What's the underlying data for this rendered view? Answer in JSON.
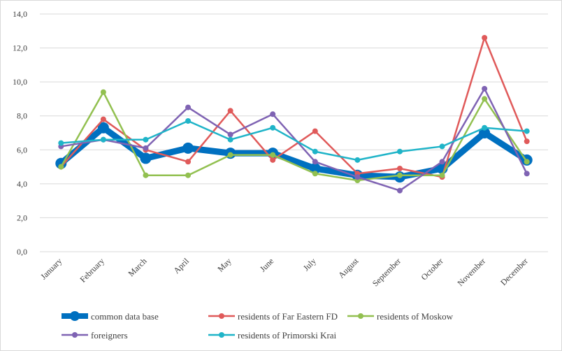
{
  "chart_data": {
    "type": "line",
    "title": "",
    "xlabel": "",
    "ylabel": "",
    "ylim": [
      0,
      14
    ],
    "y_ticks": [
      "0,0",
      "2,0",
      "4,0",
      "6,0",
      "8,0",
      "10,0",
      "12,0",
      "14,0"
    ],
    "y_tick_values": [
      0,
      2,
      4,
      6,
      8,
      10,
      12,
      14
    ],
    "grid": true,
    "legend_position": "bottom",
    "categories": [
      "January",
      "February",
      "March",
      "April",
      "May",
      "June",
      "July",
      "August",
      "September",
      "October",
      "November",
      "December"
    ],
    "series": [
      {
        "name": "common data base",
        "color": "#0070C0",
        "width": "thick",
        "values": [
          5.2,
          7.3,
          5.5,
          6.1,
          5.8,
          5.8,
          4.9,
          4.5,
          4.4,
          4.9,
          7.0,
          5.4
        ]
      },
      {
        "name": "residents of Far Eastern FD",
        "color": "#E05A5A",
        "width": "normal",
        "values": [
          5.0,
          7.8,
          6.0,
          5.3,
          8.3,
          5.4,
          7.1,
          4.6,
          4.9,
          4.4,
          12.6,
          6.5
        ]
      },
      {
        "name": "residents of Moskow",
        "color": "#92C050",
        "width": "normal",
        "values": [
          5.0,
          9.4,
          4.5,
          4.5,
          5.7,
          5.7,
          4.6,
          4.2,
          4.5,
          4.5,
          9.0,
          5.3
        ]
      },
      {
        "name": "foreigners",
        "color": "#7F63B3",
        "width": "normal",
        "values": [
          6.2,
          6.6,
          6.1,
          8.5,
          6.9,
          8.1,
          5.3,
          4.4,
          3.6,
          5.3,
          9.6,
          4.6
        ]
      },
      {
        "name": "residents of Primorski Krai",
        "color": "#1FB4C8",
        "width": "normal",
        "values": [
          6.4,
          6.6,
          6.6,
          7.7,
          6.6,
          7.3,
          5.9,
          5.4,
          5.9,
          6.2,
          7.3,
          7.1
        ]
      }
    ]
  }
}
